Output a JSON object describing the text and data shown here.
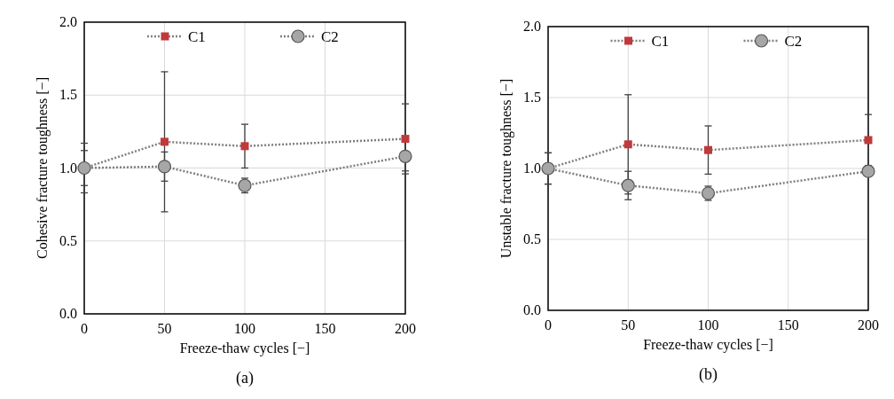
{
  "chart_data": [
    {
      "type": "line",
      "xlabel": "Freeze-thaw cycles [−]",
      "ylabel": "Cohesive fracture toughness [−]",
      "annotations": [
        "(a)"
      ],
      "x": [
        0,
        50,
        100,
        200
      ],
      "xlim": [
        0,
        200
      ],
      "xticks": [
        0,
        50,
        100,
        150,
        200
      ],
      "ylim": [
        0,
        2
      ],
      "yticks": [
        {
          "value": 0,
          "label": "0.0"
        },
        {
          "value": 0.5,
          "label": "0.5"
        },
        {
          "value": 1,
          "label": "1.0"
        },
        {
          "value": 1.5,
          "label": "1.5"
        },
        {
          "value": 2,
          "label": "2.0"
        }
      ],
      "grid": true,
      "legend": "top",
      "line_style": "dotted",
      "series": [
        {
          "name": "C1",
          "color": "#c0393b",
          "marker": "square",
          "values": [
            1.0,
            1.18,
            1.15,
            1.2
          ],
          "errors": [
            0.17,
            0.48,
            0.15,
            0.24
          ]
        },
        {
          "name": "C2",
          "color": "#a6a6a6",
          "marker": "circle",
          "values": [
            1.0,
            1.01,
            0.88,
            1.08
          ],
          "errors": [
            0.12,
            0.1,
            0.05,
            0.1
          ]
        }
      ]
    },
    {
      "type": "line",
      "xlabel": "Freeze-thaw cycles [−]",
      "ylabel": "Unstable fracture toughness [−]",
      "annotations": [
        "(b)"
      ],
      "x": [
        0,
        50,
        100,
        200
      ],
      "xlim": [
        0,
        200
      ],
      "xticks": [
        0,
        50,
        100,
        150,
        200
      ],
      "ylim": [
        0,
        2
      ],
      "yticks": [
        {
          "value": 0,
          "label": "0.0"
        },
        {
          "value": 0.5,
          "label": "0.5"
        },
        {
          "value": 1,
          "label": "1.0"
        },
        {
          "value": 1.5,
          "label": "1.5"
        },
        {
          "value": 2,
          "label": "2.0"
        }
      ],
      "grid": true,
      "legend": "top",
      "line_style": "dotted",
      "series": [
        {
          "name": "C1",
          "color": "#c0393b",
          "marker": "square",
          "values": [
            1.0,
            1.17,
            1.13,
            1.2
          ],
          "errors": [
            0.11,
            0.35,
            0.17,
            0.18
          ]
        },
        {
          "name": "C2",
          "color": "#a6a6a6",
          "marker": "circle",
          "values": [
            1.0,
            0.88,
            0.825,
            0.98
          ],
          "errors": [
            0.11,
            0.1,
            0.05,
            0.03
          ]
        }
      ]
    }
  ]
}
